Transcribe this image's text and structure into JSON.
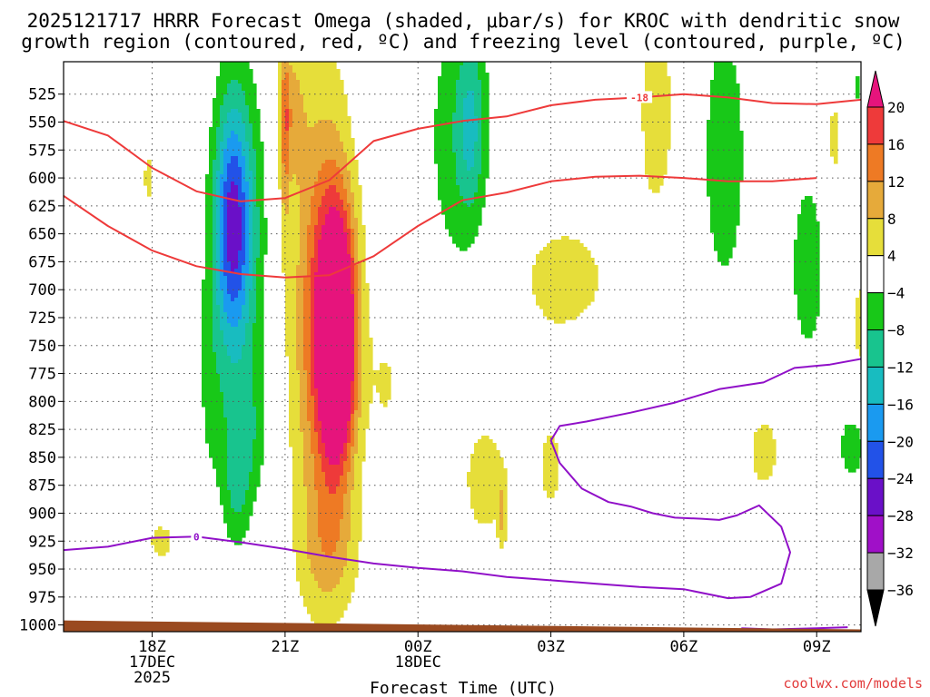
{
  "title_lines": [
    "2025121717 HRRR Forecast Omega (shaded, μbar/s) for KROC with dendritic snow",
    "growth region (contoured, red, ºC) and freezing level (contoured, purple, ºC)"
  ],
  "credit": "coolwx.com/models",
  "chart_data": {
    "type": "heatmap",
    "title": "2025121717 HRRR Forecast Omega (shaded, μbar/s) for KROC with dendritic snow growth region (contoured, red, ºC) and freezing level (contoured, purple, ºC)",
    "xlabel": "Forecast Time (UTC)",
    "ylabel": "",
    "x_range_hours": [
      -1,
      17
    ],
    "y_range_mb": [
      1006,
      496
    ],
    "x_ticks": [
      {
        "hour": 1,
        "lines": [
          "18Z",
          "17DEC",
          "2025"
        ]
      },
      {
        "hour": 4,
        "lines": [
          "21Z"
        ]
      },
      {
        "hour": 7,
        "lines": [
          "00Z",
          "18DEC"
        ]
      },
      {
        "hour": 10,
        "lines": [
          "03Z"
        ]
      },
      {
        "hour": 13,
        "lines": [
          "06Z"
        ]
      },
      {
        "hour": 16,
        "lines": [
          "09Z"
        ]
      }
    ],
    "y_ticks": [
      525,
      550,
      575,
      600,
      625,
      650,
      675,
      700,
      725,
      750,
      775,
      800,
      825,
      850,
      875,
      900,
      925,
      950,
      975,
      1000
    ],
    "colorbar": {
      "labels": [
        "20",
        "16",
        "12",
        "8",
        "4",
        "−4",
        "−8",
        "−12",
        "−16",
        "−20",
        "−24",
        "−28",
        "−32",
        "−36"
      ],
      "levels": [
        {
          "lo": 20,
          "hi": 24,
          "color": "#e6147c"
        },
        {
          "lo": 16,
          "hi": 20,
          "color": "#ee3a3a"
        },
        {
          "lo": 12,
          "hi": 16,
          "color": "#ee7a24"
        },
        {
          "lo": 8,
          "hi": 12,
          "color": "#e6aa3a"
        },
        {
          "lo": 4,
          "hi": 8,
          "color": "#e6de3a"
        },
        {
          "lo": -4,
          "hi": 4,
          "color": "#ffffff"
        },
        {
          "lo": -8,
          "hi": -4,
          "color": "#18c818"
        },
        {
          "lo": -12,
          "hi": -8,
          "color": "#18c48e"
        },
        {
          "lo": -16,
          "hi": -12,
          "color": "#18bcc0"
        },
        {
          "lo": -20,
          "hi": -16,
          "color": "#1a9af0"
        },
        {
          "lo": -24,
          "hi": -20,
          "color": "#2252e8"
        },
        {
          "lo": -28,
          "hi": -24,
          "color": "#6a10c8"
        },
        {
          "lo": -32,
          "hi": -28,
          "color": "#a010c8"
        },
        {
          "lo": -36,
          "hi": -32,
          "color": "#a8a8a8"
        }
      ],
      "over_color": "#e6147c",
      "under_color": "#000000"
    },
    "omega_cores": [
      {
        "h": 0.9,
        "p": 600,
        "sh": 0.12,
        "sp": 35,
        "v": 4.5
      },
      {
        "h": 3.0,
        "p": 655,
        "sh": 0.42,
        "sp": 105,
        "v": -10
      },
      {
        "h": 3.1,
        "p": 830,
        "sh": 0.34,
        "sp": 45,
        "v": -7
      },
      {
        "h": 2.8,
        "p": 640,
        "sh": 0.28,
        "sp": 75,
        "v": -18
      },
      {
        "h": 2.9,
        "p": 885,
        "sh": 0.22,
        "sp": 38,
        "v": -6
      },
      {
        "h": 2.3,
        "p": 785,
        "sh": 0.25,
        "sp": 80,
        "v": -4
      },
      {
        "h": 1.2,
        "p": 925,
        "sh": 0.3,
        "sp": 18,
        "v": 5
      },
      {
        "h": 4.1,
        "p": 540,
        "sh": 0.24,
        "sp": 45,
        "v": 8
      },
      {
        "h": 4.0,
        "p": 560,
        "sh": 0.07,
        "sp": 70,
        "v": 8
      },
      {
        "h": 4.8,
        "p": 720,
        "sh": 0.52,
        "sp": 155,
        "v": 12
      },
      {
        "h": 5.1,
        "p": 740,
        "sh": 0.36,
        "sp": 95,
        "v": 14
      },
      {
        "h": 5.2,
        "p": 745,
        "sh": 0.25,
        "sp": 68,
        "v": 24
      },
      {
        "h": 5.0,
        "p": 935,
        "sh": 0.48,
        "sp": 42,
        "v": 6
      },
      {
        "h": 6.3,
        "p": 785,
        "sh": 0.32,
        "sp": 55,
        "v": 4
      },
      {
        "h": 5.7,
        "p": 525,
        "sh": 0.12,
        "sp": 25,
        "v": -5
      },
      {
        "h": 7.9,
        "p": 565,
        "sh": 0.52,
        "sp": 95,
        "v": -6.5
      },
      {
        "h": 8.2,
        "p": 555,
        "sh": 0.22,
        "sp": 55,
        "v": -8.5
      },
      {
        "h": 8.5,
        "p": 870,
        "sh": 0.55,
        "sp": 60,
        "v": 5
      },
      {
        "h": 8.9,
        "p": 900,
        "sh": 0.06,
        "sp": 20,
        "v": 7
      },
      {
        "h": 10.3,
        "p": 690,
        "sh": 1.1,
        "sp": 55,
        "v": 5
      },
      {
        "h": 12.4,
        "p": 540,
        "sh": 0.48,
        "sp": 95,
        "v": 5
      },
      {
        "h": 10.0,
        "p": 860,
        "sh": 0.3,
        "sp": 50,
        "v": 4.5
      },
      {
        "h": 9.9,
        "p": 945,
        "sh": 0.08,
        "sp": 12,
        "v": -5
      },
      {
        "h": 13.9,
        "p": 580,
        "sh": 0.45,
        "sp": 110,
        "v": -6
      },
      {
        "h": 15.8,
        "p": 680,
        "sh": 0.3,
        "sp": 65,
        "v": -6.5
      },
      {
        "h": 14.8,
        "p": 845,
        "sh": 0.4,
        "sp": 38,
        "v": 5
      },
      {
        "h": 16.4,
        "p": 565,
        "sh": 0.16,
        "sp": 38,
        "v": 5
      },
      {
        "h": 17.0,
        "p": 730,
        "sh": 0.22,
        "sp": 42,
        "v": 5
      },
      {
        "h": 16.8,
        "p": 840,
        "sh": 0.26,
        "sp": 25,
        "v": -6
      },
      {
        "h": 16.9,
        "p": 520,
        "sh": 0.06,
        "sp": 25,
        "v": -4.5
      }
    ],
    "dgz_contours": [
      {
        "label": "-18",
        "label_at": [
          12.0,
          528
        ],
        "points": [
          [
            -1,
            549
          ],
          [
            0.0,
            562
          ],
          [
            1.0,
            591
          ],
          [
            2.0,
            612
          ],
          [
            3.0,
            621
          ],
          [
            4.0,
            618
          ],
          [
            5.0,
            602
          ],
          [
            6.0,
            567
          ],
          [
            7.0,
            556
          ],
          [
            8.0,
            549
          ],
          [
            9.0,
            545
          ],
          [
            10.0,
            535
          ],
          [
            11.0,
            530
          ],
          [
            12.0,
            528
          ],
          [
            13.0,
            525
          ],
          [
            14.0,
            528
          ],
          [
            15.0,
            533
          ],
          [
            16.0,
            534
          ],
          [
            17.0,
            530
          ]
        ]
      },
      {
        "label": "",
        "points": [
          [
            -1,
            616
          ],
          [
            0.0,
            643
          ],
          [
            1.0,
            665
          ],
          [
            2.0,
            679
          ],
          [
            3.0,
            686
          ],
          [
            4.0,
            689
          ],
          [
            5.0,
            687
          ],
          [
            6.0,
            670
          ],
          [
            7.0,
            643
          ],
          [
            8.0,
            620
          ],
          [
            9.0,
            613
          ],
          [
            10.0,
            603
          ],
          [
            11.0,
            599
          ],
          [
            12.0,
            598
          ],
          [
            13.0,
            600
          ],
          [
            14.0,
            603
          ],
          [
            15.0,
            603
          ],
          [
            16.0,
            600
          ]
        ]
      }
    ],
    "freezing_contours": [
      {
        "label": "0",
        "label_at": [
          2.0,
          921
        ],
        "points": [
          [
            -1,
            933
          ],
          [
            0.0,
            930
          ],
          [
            1.0,
            922
          ],
          [
            2.0,
            921
          ],
          [
            3.0,
            926
          ],
          [
            4.0,
            932
          ],
          [
            5.0,
            939
          ],
          [
            6.0,
            945
          ],
          [
            7.0,
            949
          ],
          [
            8.0,
            952
          ],
          [
            9.0,
            957
          ],
          [
            10.0,
            960
          ],
          [
            11.0,
            963
          ],
          [
            12.0,
            966
          ],
          [
            13.0,
            968
          ],
          [
            14.0,
            976
          ],
          [
            14.5,
            975
          ],
          [
            15.2,
            963
          ],
          [
            15.4,
            935
          ],
          [
            15.2,
            912
          ],
          [
            14.7,
            893
          ],
          [
            14.2,
            902
          ],
          [
            13.8,
            906
          ],
          [
            13.4,
            905
          ],
          [
            12.8,
            904
          ],
          [
            12.3,
            900
          ],
          [
            11.8,
            894
          ],
          [
            11.3,
            890
          ],
          [
            10.7,
            878
          ],
          [
            10.2,
            855
          ],
          [
            10.0,
            835
          ],
          [
            10.2,
            822
          ],
          [
            10.8,
            818
          ],
          [
            11.8,
            810
          ],
          [
            12.8,
            801
          ],
          [
            13.8,
            789
          ],
          [
            14.8,
            783
          ],
          [
            15.5,
            770
          ],
          [
            16.3,
            767
          ],
          [
            17.0,
            762
          ]
        ]
      },
      {
        "label": "",
        "points": [
          [
            14.3,
            1003
          ],
          [
            15.0,
            1004
          ],
          [
            16.0,
            1003
          ],
          [
            16.7,
            1002
          ]
        ]
      }
    ],
    "terrain": [
      [
        -1,
        996
      ],
      [
        17,
        1004
      ]
    ]
  }
}
